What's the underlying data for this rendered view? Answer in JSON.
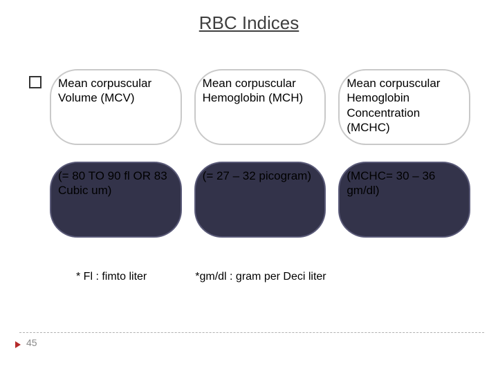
{
  "title": "RBC Indices",
  "page_number": "45",
  "colors": {
    "white_bg": "#ffffff",
    "white_border": "#c9c9c9",
    "dark_bg": "#33334a",
    "dark_border": "#5a5a78"
  },
  "cells": [
    {
      "text": "Mean corpuscular Volume (MCV)",
      "bg": "#ffffff",
      "border": "#c9c9c9"
    },
    {
      "text": "Mean corpuscular Hemoglobin (MCH)",
      "bg": "#ffffff",
      "border": "#c9c9c9"
    },
    {
      "text": "Mean corpuscular Hemoglobin Concentration (MCHC)",
      "bg": "#ffffff",
      "border": "#c9c9c9"
    },
    {
      "text": "(= 80 TO 90 fl OR 83 Cubic um)",
      "bg": "#33334a",
      "border": "#5a5a78"
    },
    {
      "text": "(= 27 – 32 picogram)",
      "bg": "#33334a",
      "border": "#5a5a78"
    },
    {
      "text": "(MCHC= 30 – 36 gm/dl)",
      "bg": "#33334a",
      "border": "#5a5a78"
    }
  ],
  "footnotes": [
    "* Fl : fimto liter",
    "*gm/dl : gram per Deci liter"
  ]
}
